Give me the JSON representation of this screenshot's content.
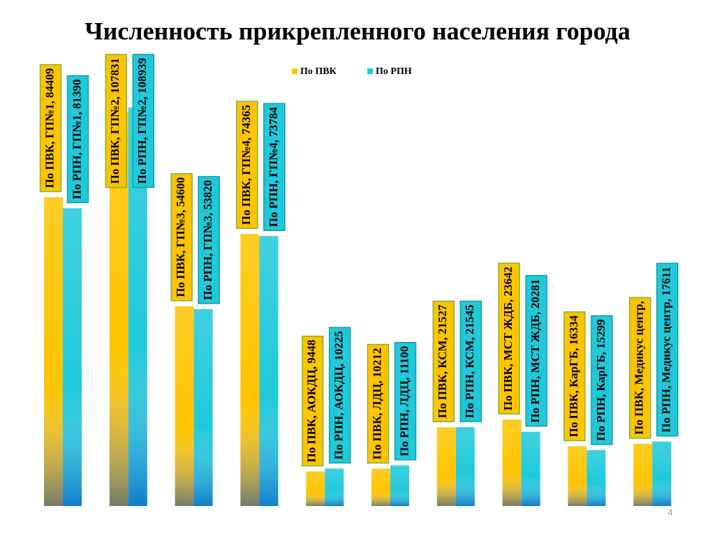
{
  "chart_data": {
    "type": "bar",
    "title": "Численность прикрепленного населения города",
    "categories": [
      "ГП№1",
      "ГП№2",
      "ГП№3",
      "ГП№4",
      "АОКДЦ",
      "ЛДЦ",
      "КСМ",
      "МСТ ЖДБ",
      "КарГБ",
      "Медикус центр"
    ],
    "series": [
      {
        "name": "По ПВК",
        "color": "#FFC400",
        "values": [
          84409,
          107831,
          54600,
          74365,
          9448,
          10212,
          21527,
          23642,
          16334,
          17000
        ],
        "value_labels": [
          "По ПВК, ГП№1, 84409",
          "По ПВК, ГП№2, 107831",
          "По ПВК, ГП№3, 54600",
          "По ПВК, ГП№4, 74365",
          "По ПВК, АОКДЦ, 9448",
          "По ПВК, ЛДЦ, 10212",
          "По ПВК, КСМ, 21527",
          "По ПВК, МСТ ЖДБ, 23642",
          "По ПВК, КарГБ, 16334",
          "По ПВК, Медикус центр,"
        ]
      },
      {
        "name": "По РПН",
        "color": "#1FC9DA",
        "values": [
          81390,
          108939,
          53820,
          73784,
          10225,
          11100,
          21545,
          20281,
          15299,
          17611
        ],
        "value_labels": [
          "По РПН, ГП№1, 81390",
          "По РПН, ГП№2, 108939",
          "По РПН, ГП№3, 53820",
          "По РПН, ГП№4, 73784",
          "По РПН, АОКДЦ, 10225",
          "По РПН, ЛДЦ, 11100",
          "По РПН, КСМ, 21545",
          "По РПН, МСТ ЖДБ, 20281",
          "По РПН, КарГБ, 15299",
          "По РПН, Медикус центр, 17611"
        ]
      }
    ],
    "ylim": [
      0,
      120000
    ],
    "page_number": "4"
  }
}
